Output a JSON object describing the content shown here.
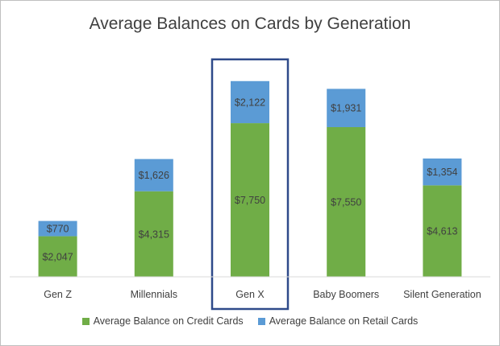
{
  "chart_data": {
    "type": "bar",
    "stacked": true,
    "title": "Average Balances on Cards by Generation",
    "categories": [
      "Gen Z",
      "Millennials",
      "Gen X",
      "Baby Boomers",
      "Silent Generation"
    ],
    "series": [
      {
        "name": "Average Balance on Credit Cards",
        "color": "#70ad47",
        "values": [
          2047,
          4315,
          7750,
          7550,
          4613
        ],
        "labels": [
          "$2,047",
          "$4,315",
          "$7,750",
          "$7,550",
          "$4,613"
        ]
      },
      {
        "name": "Average Balance on Retail Cards",
        "color": "#5b9bd5",
        "values": [
          770,
          1626,
          2122,
          1931,
          1354
        ],
        "labels": [
          "$770",
          "$1,626",
          "$2,122",
          "$1,931",
          "$1,354"
        ]
      }
    ],
    "highlighted_category": "Gen X",
    "highlight_color": "#2f4a8a",
    "ylim": [
      0,
      11000
    ],
    "grid": false,
    "legend_position": "bottom"
  }
}
